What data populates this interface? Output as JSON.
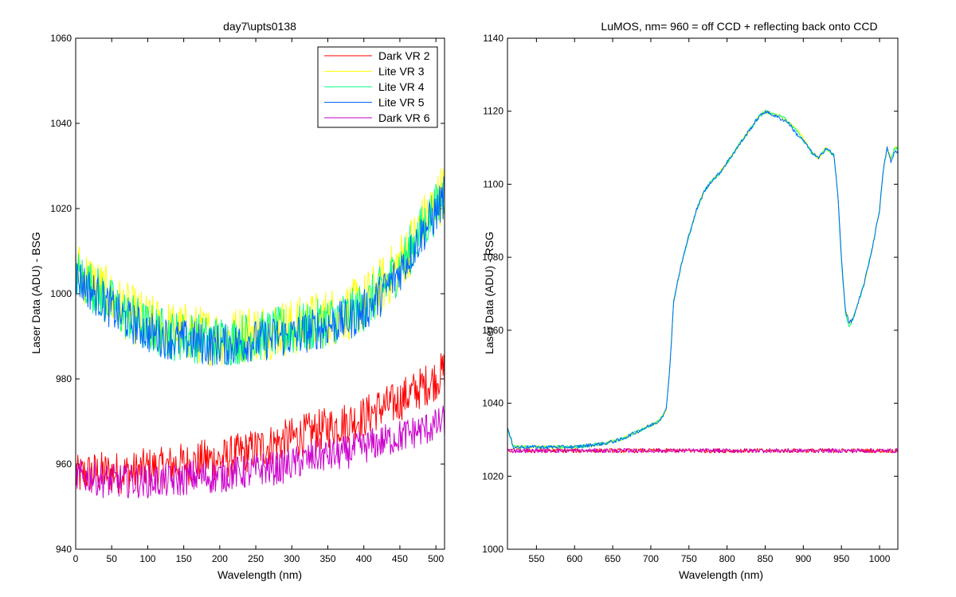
{
  "figure": {
    "background": "#ffffff"
  },
  "chart_data": [
    {
      "type": "line",
      "title": "day7\\upts0138",
      "xlabel": "Wavelength (nm)",
      "ylabel": "Laser Data (ADU) - BSG",
      "xlim": [
        0,
        512
      ],
      "ylim": [
        940,
        1060
      ],
      "xticks": [
        0,
        50,
        100,
        150,
        200,
        250,
        300,
        350,
        400,
        450,
        500
      ],
      "yticks": [
        940,
        960,
        980,
        1000,
        1020,
        1040,
        1060
      ],
      "grid": false,
      "legend_position": "top-right",
      "series": [
        {
          "name": "Dark VR 2",
          "color": "#ff0000",
          "x": [
            0,
            20,
            40,
            60,
            80,
            100,
            120,
            140,
            160,
            180,
            200,
            220,
            240,
            260,
            280,
            300,
            320,
            340,
            360,
            380,
            400,
            420,
            440,
            460,
            480,
            500,
            512
          ],
          "y": [
            957,
            958,
            958,
            958,
            958,
            959,
            959,
            960,
            960,
            961,
            961,
            962,
            963,
            964,
            965,
            966,
            967,
            968,
            969,
            970,
            971,
            973,
            974,
            976,
            978,
            980,
            982
          ],
          "noise": 5
        },
        {
          "name": "Lite VR 3",
          "color": "#ffff00",
          "x": [
            0,
            20,
            40,
            60,
            80,
            100,
            120,
            140,
            160,
            180,
            200,
            220,
            240,
            260,
            280,
            300,
            320,
            340,
            360,
            380,
            400,
            420,
            440,
            460,
            480,
            500,
            512
          ],
          "y": [
            1006,
            1003,
            1000,
            997,
            995,
            993,
            992,
            991,
            991,
            990,
            990,
            990,
            991,
            991,
            992,
            992,
            993,
            994,
            995,
            996,
            998,
            1001,
            1005,
            1010,
            1016,
            1021,
            1025
          ],
          "noise": 7
        },
        {
          "name": "Lite VR 4",
          "color": "#00ff80",
          "x": [
            0,
            20,
            40,
            60,
            80,
            100,
            120,
            140,
            160,
            180,
            200,
            220,
            240,
            260,
            280,
            300,
            320,
            340,
            360,
            380,
            400,
            420,
            440,
            460,
            480,
            500,
            512
          ],
          "y": [
            1005,
            1002,
            999,
            996,
            994,
            992,
            991,
            990,
            990,
            989,
            989,
            989,
            990,
            990,
            991,
            991,
            992,
            993,
            994,
            995,
            997,
            1000,
            1004,
            1009,
            1015,
            1020,
            1024
          ],
          "noise": 6
        },
        {
          "name": "Lite VR 5",
          "color": "#0066ff",
          "x": [
            0,
            20,
            40,
            60,
            80,
            100,
            120,
            140,
            160,
            180,
            200,
            220,
            240,
            260,
            280,
            300,
            320,
            340,
            360,
            380,
            400,
            420,
            440,
            460,
            480,
            500,
            512
          ],
          "y": [
            1004,
            1001,
            998,
            995,
            993,
            991,
            990,
            989,
            989,
            988,
            988,
            988,
            989,
            989,
            990,
            990,
            991,
            992,
            993,
            994,
            996,
            999,
            1003,
            1008,
            1014,
            1019,
            1023
          ],
          "noise": 5
        },
        {
          "name": "Dark VR 6",
          "color": "#cc00cc",
          "x": [
            0,
            20,
            40,
            60,
            80,
            100,
            120,
            140,
            160,
            180,
            200,
            220,
            240,
            260,
            280,
            300,
            320,
            340,
            360,
            380,
            400,
            420,
            440,
            460,
            480,
            500,
            512
          ],
          "y": [
            957,
            957,
            956,
            956,
            956,
            956,
            956,
            956,
            957,
            957,
            957,
            958,
            958,
            959,
            959,
            960,
            961,
            962,
            962,
            963,
            964,
            965,
            966,
            967,
            968,
            969,
            970
          ],
          "noise": 4
        }
      ]
    },
    {
      "type": "line",
      "title": "LuMOS, nm= 960 = off CCD + reflecting back onto CCD",
      "xlabel": "Wavelength (nm)",
      "ylabel": "Laser Data (ADU) - RSG",
      "xlim": [
        512,
        1024
      ],
      "ylim": [
        1000,
        1140
      ],
      "xticks": [
        550,
        600,
        650,
        700,
        750,
        800,
        850,
        900,
        950,
        1000
      ],
      "yticks": [
        1000,
        1020,
        1040,
        1060,
        1080,
        1100,
        1120,
        1140
      ],
      "grid": false,
      "series": [
        {
          "color": "#ff0000",
          "x": [
            512,
            1024
          ],
          "y": [
            1027,
            1027
          ],
          "noise": 0.6
        },
        {
          "color": "#ffff00",
          "x": [
            512,
            520,
            560,
            600,
            640,
            660,
            680,
            700,
            710,
            720,
            725,
            730,
            740,
            750,
            760,
            770,
            780,
            790,
            800,
            810,
            820,
            830,
            840,
            850,
            860,
            870,
            880,
            890,
            900,
            910,
            920,
            930,
            940,
            945,
            950,
            955,
            960,
            965,
            970,
            980,
            990,
            1000,
            1005,
            1010,
            1015,
            1020
          ],
          "y": [
            1033,
            1028,
            1028,
            1028,
            1029,
            1030,
            1032,
            1034,
            1035,
            1038,
            1050,
            1068,
            1078,
            1086,
            1093,
            1098,
            1101,
            1103,
            1106,
            1109,
            1112,
            1115,
            1118,
            1120,
            1119,
            1119,
            1117,
            1115,
            1113,
            1109,
            1107,
            1110,
            1108,
            1098,
            1080,
            1066,
            1062,
            1063,
            1066,
            1073,
            1082,
            1093,
            1104,
            1110,
            1107,
            1110
          ],
          "noise": 0.5
        },
        {
          "color": "#00ff80",
          "x": [
            512,
            520,
            560,
            600,
            640,
            660,
            680,
            700,
            710,
            720,
            725,
            730,
            740,
            750,
            760,
            770,
            780,
            790,
            800,
            810,
            820,
            830,
            840,
            850,
            860,
            870,
            880,
            890,
            900,
            910,
            920,
            930,
            940,
            945,
            950,
            955,
            960,
            965,
            970,
            980,
            990,
            1000,
            1005,
            1010,
            1015,
            1020
          ],
          "y": [
            1033,
            1028,
            1028,
            1028,
            1029,
            1030,
            1032,
            1034,
            1035,
            1038,
            1050,
            1068,
            1078,
            1086,
            1093,
            1098,
            1101,
            1103,
            1106,
            1109,
            1112,
            1115,
            1118,
            1120,
            1119,
            1119,
            1117,
            1115,
            1112,
            1109,
            1107,
            1110,
            1108,
            1098,
            1079,
            1065,
            1061,
            1063,
            1066,
            1073,
            1082,
            1093,
            1104,
            1110,
            1107,
            1110
          ],
          "noise": 0.5
        },
        {
          "color": "#0066ff",
          "x": [
            512,
            520,
            560,
            600,
            640,
            660,
            680,
            700,
            710,
            720,
            725,
            730,
            740,
            750,
            760,
            770,
            780,
            790,
            800,
            810,
            820,
            830,
            840,
            850,
            860,
            870,
            880,
            890,
            900,
            910,
            920,
            930,
            940,
            945,
            950,
            955,
            960,
            965,
            970,
            980,
            990,
            1000,
            1005,
            1010,
            1015,
            1020
          ],
          "y": [
            1033,
            1028,
            1028,
            1028,
            1029,
            1030,
            1032,
            1034,
            1035,
            1038,
            1050,
            1068,
            1078,
            1086,
            1093,
            1098,
            1101,
            1103,
            1106,
            1109,
            1112,
            1115,
            1118,
            1120,
            1119,
            1118,
            1117,
            1114,
            1112,
            1109,
            1107,
            1110,
            1108,
            1098,
            1080,
            1066,
            1062,
            1063,
            1066,
            1073,
            1082,
            1093,
            1104,
            1110,
            1106,
            1109
          ],
          "noise": 0.5
        },
        {
          "color": "#cc00cc",
          "x": [
            512,
            1024
          ],
          "y": [
            1027,
            1027
          ],
          "noise": 0.6
        }
      ]
    }
  ]
}
